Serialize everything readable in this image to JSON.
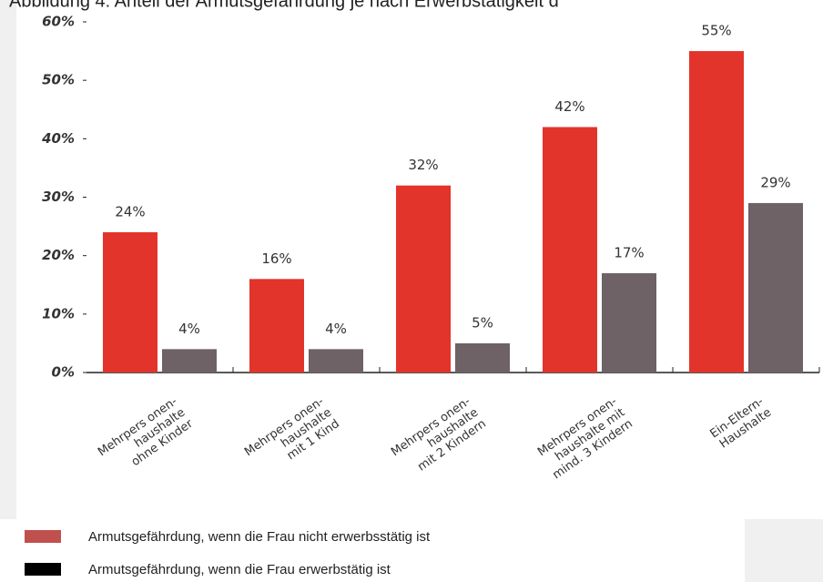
{
  "chart_data": {
    "type": "bar",
    "title": "Abbildung 4: Anteil der Armutsgefährdung je nach Erwerbstätigkeit d",
    "categories": [
      "Mehrpers onen-\nhaushalte\nohne Kinder",
      "Mehrpers onen-\nhaushalte\nmit 1 Kind",
      "Mehrpers onen-\nhaushalte\nmit 2 Kindern",
      "Mehrpers onen-\nhaushalte mit\nmind. 3 Kindern",
      "Ein-Eltern-\nHaushalte"
    ],
    "series": [
      {
        "name": "Armutsgefährdung, wenn die Frau nicht  erwerbsstätig ist",
        "color": "#e2342b",
        "legend_color": "#c0504d",
        "values": [
          24,
          16,
          32,
          42,
          55
        ],
        "value_labels": [
          "24%",
          "16%",
          "32%",
          "42%",
          "55%"
        ]
      },
      {
        "name": "Armutsgefährdung, wenn die Frau erwerbstätig ist",
        "color": "#6e6266",
        "legend_color": "#000000",
        "values": [
          4,
          4,
          5,
          17,
          29
        ],
        "value_labels": [
          "4%",
          "4%",
          "5%",
          "17%",
          "29%"
        ]
      }
    ],
    "ylim": [
      0,
      60
    ],
    "yticks": [
      {
        "value": 0,
        "label": "0%"
      },
      {
        "value": 10,
        "label": "10%"
      },
      {
        "value": 20,
        "label": "20%"
      },
      {
        "value": 30,
        "label": "30%"
      },
      {
        "value": 40,
        "label": "40%"
      },
      {
        "value": 50,
        "label": "50%"
      },
      {
        "value": 60,
        "label": "60%"
      }
    ],
    "grid": false
  }
}
